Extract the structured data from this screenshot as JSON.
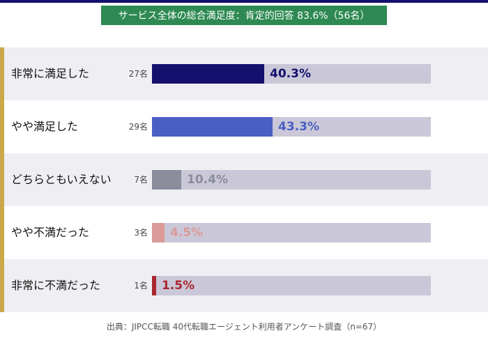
{
  "title": "サービス全体の総合満足度：肯定的回答 83.6%（56名）",
  "source": "出典：JIPCC転職 40代転職エージェント利用者アンケート調査（n=67）",
  "chart_data": {
    "type": "bar",
    "orientation": "horizontal",
    "categories": [
      "非常に満足した",
      "やや満足した",
      "どちらともいえない",
      "やや不満だった",
      "非常に不満だった"
    ],
    "counts": [
      "27名",
      "29名",
      "7名",
      "3名",
      "1名"
    ],
    "values": [
      40.3,
      43.3,
      10.4,
      4.5,
      1.5
    ],
    "value_labels": [
      "40.3%",
      "43.3%",
      "10.4%",
      "4.5%",
      "1.5%"
    ],
    "xlim": [
      0,
      100
    ],
    "colors": [
      "#14106e",
      "#4b5ec4",
      "#8b8c9c",
      "#d99a98",
      "#a9282e"
    ],
    "track_color": "#cac8d8"
  }
}
